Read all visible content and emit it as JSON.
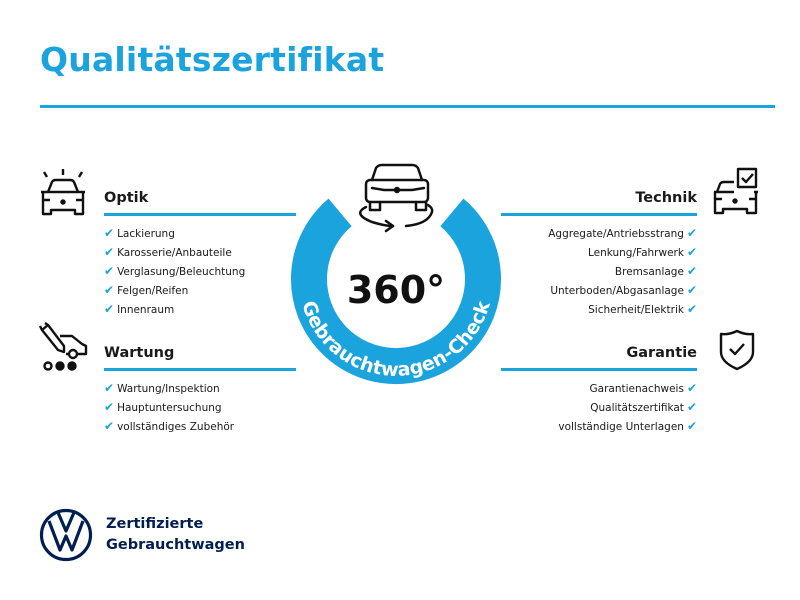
{
  "title": "Qualitätszertifikat",
  "center": {
    "big": "360°",
    "ring_text": "Gebrauchtwagen-Check"
  },
  "check": "✔",
  "colors": {
    "accent": "#1aa3dd",
    "brand": "#001e50"
  },
  "sections": {
    "optik": {
      "heading": "Optik",
      "icon": "car-lights-icon",
      "items": [
        "Lackierung",
        "Karosserie/Anbauteile",
        "Verglasung/Beleuchtung",
        "Felgen/Reifen",
        "Innenraum"
      ]
    },
    "wartung": {
      "heading": "Wartung",
      "icon": "wrench-car-icon",
      "items": [
        "Wartung/Inspektion",
        "Hauptuntersuchung",
        "vollständiges Zubehör"
      ]
    },
    "technik": {
      "heading": "Technik",
      "icon": "car-checkbox-icon",
      "items": [
        "Aggregate/Antriebsstrang",
        "Lenkung/Fahrwerk",
        "Bremsanlage",
        "Unterboden/Abgasanlage",
        "Sicherheit/Elektrik"
      ]
    },
    "garantie": {
      "heading": "Garantie",
      "icon": "shield-check-icon",
      "items": [
        "Garantienachweis",
        "Qualitätszertifikat",
        "vollständige Unterlagen"
      ]
    }
  },
  "logo": {
    "line1": "Zertifizierte",
    "line2": "Gebrauchtwagen"
  }
}
